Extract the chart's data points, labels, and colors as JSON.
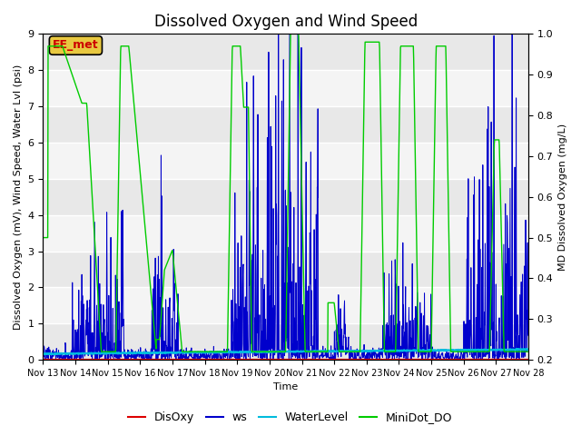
{
  "title": "Dissolved Oxygen and Wind Speed",
  "ylabel_left": "Dissolved Oxygen (mV), Wind Speed, Water Lvl (psi)",
  "ylabel_right": "MD Dissolved Oxygen (mg/L)",
  "xlabel": "Time",
  "ylim_left": [
    0.0,
    9.0
  ],
  "ylim_right": [
    0.2,
    1.0
  ],
  "xlim": [
    0,
    15
  ],
  "xtick_labels": [
    "Nov 13",
    "Nov 14",
    "Nov 15",
    "Nov 16",
    "Nov 17",
    "Nov 18",
    "Nov 19",
    "Nov 20",
    "Nov 21",
    "Nov 22",
    "Nov 23",
    "Nov 24",
    "Nov 25",
    "Nov 26",
    "Nov 27",
    "Nov 28"
  ],
  "annotation_text": "EE_met",
  "annotation_fg": "#cc0000",
  "annotation_bg": "#e8c840",
  "disoxy_color": "#dd0000",
  "ws_color": "#0000cc",
  "waterlevel_color": "#00bbdd",
  "minidot_color": "#00cc00",
  "title_fontsize": 12,
  "label_fontsize": 8,
  "tick_fontsize": 8,
  "legend_fontsize": 9,
  "grid_color": "#ffffff",
  "bg_bands": [
    [
      0.0,
      1.0,
      "#e8e8e8"
    ],
    [
      1.0,
      2.0,
      "#f4f4f4"
    ],
    [
      2.0,
      3.0,
      "#e8e8e8"
    ],
    [
      3.0,
      4.0,
      "#f4f4f4"
    ],
    [
      4.0,
      5.0,
      "#e8e8e8"
    ],
    [
      5.0,
      6.0,
      "#f4f4f4"
    ],
    [
      6.0,
      7.0,
      "#e8e8e8"
    ],
    [
      7.0,
      8.0,
      "#f4f4f4"
    ],
    [
      8.0,
      9.0,
      "#e8e8e8"
    ]
  ]
}
